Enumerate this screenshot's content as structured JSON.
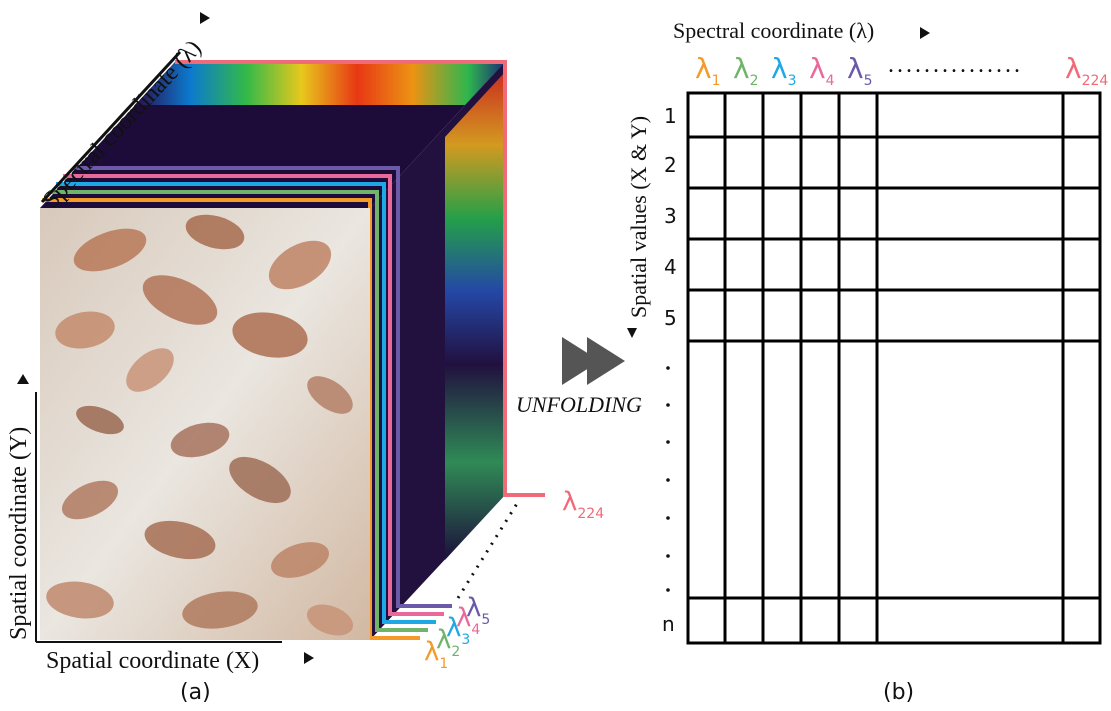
{
  "cube": {
    "spectral_axis_label": "Spectral coordinate (λ)",
    "spatial_y_label": "Spatial coordinate (Y)",
    "spatial_x_label": "Spatial coordinate (X)",
    "caption": "(a)",
    "band_labels": [
      "λ1",
      "λ2",
      "λ3",
      "λ4",
      "λ5"
    ],
    "last_band_label": "λ224",
    "band_colors": [
      "#f39a2b",
      "#6fb46a",
      "#1ea8e6",
      "#e9699a",
      "#6a5aa8"
    ],
    "last_band_color": "#f06a78"
  },
  "transition": {
    "label": "UNFOLDING"
  },
  "matrix": {
    "spectral_axis_label": "Spectral coordinate (λ)",
    "spatial_axis_label": "Spatial values (X & Y)",
    "caption": "(b)",
    "column_headers": [
      {
        "base": "λ",
        "sub": "1",
        "color": "#f39a2b"
      },
      {
        "base": "λ",
        "sub": "2",
        "color": "#6fb46a"
      },
      {
        "base": "λ",
        "sub": "3",
        "color": "#1ea8e6"
      },
      {
        "base": "λ",
        "sub": "4",
        "color": "#e9699a"
      },
      {
        "base": "λ",
        "sub": "5",
        "color": "#6a5aa8"
      },
      {
        "base": "λ",
        "sub": "224",
        "color": "#f06a78"
      }
    ],
    "row_labels": [
      "1",
      "2",
      "3",
      "4",
      "5",
      "n"
    ],
    "ellipsis": "..............."
  }
}
